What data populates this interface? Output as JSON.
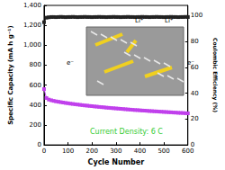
{
  "chart_data": {
    "type": "line",
    "x_label": "Cycle Number",
    "y_label": "Specific Capacity (mA h g⁻¹)",
    "y2_label": "Coulombic Efficiency (%)",
    "x": [
      0,
      10,
      20,
      30,
      40,
      50,
      60,
      70,
      80,
      90,
      100,
      110,
      120,
      130,
      140,
      150,
      160,
      170,
      180,
      190,
      200,
      210,
      220,
      230,
      240,
      250,
      260,
      270,
      280,
      290,
      300,
      310,
      320,
      330,
      340,
      350,
      360,
      370,
      380,
      390,
      400,
      410,
      420,
      430,
      440,
      450,
      460,
      470,
      480,
      490,
      500,
      510,
      520,
      530,
      540,
      550,
      560,
      570,
      580,
      590,
      600
    ],
    "series": [
      {
        "name": "Specific Capacity",
        "color": "#c040ec",
        "marker": "square",
        "values": [
          560,
          470,
          455,
          448,
          442,
          437,
          433,
          429,
          425,
          421,
          418,
          414,
          411,
          408,
          405,
          402,
          399,
          396,
          394,
          391,
          389,
          386,
          384,
          381,
          379,
          377,
          374,
          372,
          370,
          368,
          366,
          364,
          362,
          360,
          358,
          356,
          354,
          352,
          350,
          349,
          347,
          345,
          344,
          342,
          340,
          339,
          337,
          336,
          334,
          333,
          331,
          330,
          328,
          327,
          325,
          324,
          322,
          321,
          320,
          318,
          317
        ]
      },
      {
        "name": "Coulombic Efficiency",
        "color": "#222222",
        "marker": "square",
        "axis": "y2",
        "values": [
          95,
          98.5,
          98.8,
          99,
          99,
          98.9,
          99,
          99.1,
          99,
          98.9,
          99,
          99,
          99.1,
          99,
          98.9,
          99,
          99,
          99.1,
          99,
          99,
          98.9,
          99,
          99,
          99.1,
          99,
          99,
          98.9,
          99,
          99,
          99.1,
          99,
          99,
          98.9,
          99,
          99,
          99.1,
          99,
          99,
          98.9,
          99,
          99,
          99.1,
          99,
          99,
          98.9,
          99,
          99,
          99.1,
          99,
          99,
          98.9,
          99,
          99,
          99.1,
          99,
          99,
          98.9,
          99,
          99,
          99.1,
          99
        ]
      }
    ],
    "xlim": [
      0,
      600
    ],
    "xticks": [
      0,
      100,
      200,
      300,
      400,
      500,
      600
    ],
    "ylim": [
      0,
      1400
    ],
    "yticks": [
      0,
      200,
      400,
      600,
      800,
      1000,
      1200,
      1400
    ],
    "y2lim": [
      0,
      108
    ],
    "y2ticks": [
      0,
      20,
      40,
      60,
      80,
      100
    ],
    "annotations": [
      "Current Density: 6 C",
      "Li⁺",
      "Li⁺",
      "e⁻",
      "e⁻"
    ],
    "annotation_color": "#33cc33",
    "grid": false
  }
}
